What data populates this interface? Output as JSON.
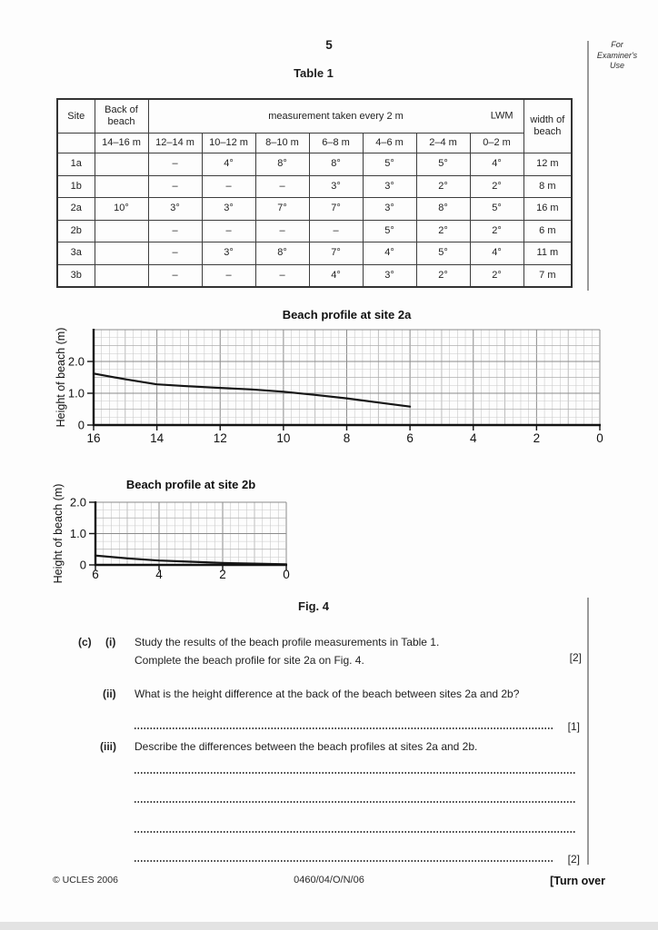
{
  "page": {
    "number": "5",
    "examiner_note": [
      "For",
      "Examiner's",
      "Use"
    ]
  },
  "table": {
    "title": "Table 1",
    "header": {
      "site": "Site",
      "back_of_beach": "Back of beach",
      "measurement": "measurement taken every 2 m",
      "lwm": "LWM",
      "width": "width of beach",
      "ranges": [
        "14–16 m",
        "12–14 m",
        "10–12 m",
        "8–10 m",
        "6–8 m",
        "4–6 m",
        "2–4 m",
        "0–2 m"
      ]
    },
    "rows": [
      {
        "site": "1a",
        "values": [
          "",
          "–",
          "4°",
          "8°",
          "8°",
          "5°",
          "5°",
          "4°"
        ],
        "width": "12 m"
      },
      {
        "site": "1b",
        "values": [
          "",
          "–",
          "–",
          "–",
          "3°",
          "3°",
          "2°",
          "2°"
        ],
        "width": "8 m"
      },
      {
        "site": "2a",
        "values": [
          "10°",
          "3°",
          "3°",
          "7°",
          "7°",
          "3°",
          "8°",
          "5°"
        ],
        "width": "16 m"
      },
      {
        "site": "2b",
        "values": [
          "",
          "–",
          "–",
          "–",
          "–",
          "5°",
          "2°",
          "2°"
        ],
        "width": "6 m"
      },
      {
        "site": "3a",
        "values": [
          "",
          "–",
          "3°",
          "8°",
          "7°",
          "4°",
          "5°",
          "4°"
        ],
        "width": "11 m"
      },
      {
        "site": "3b",
        "values": [
          "",
          "–",
          "–",
          "–",
          "4°",
          "3°",
          "2°",
          "2°"
        ],
        "width": "7 m"
      }
    ]
  },
  "chart_data": [
    {
      "type": "line",
      "title": "Beach profile at site 2a",
      "xlabel": "",
      "ylabel": "Height of beach (m)",
      "xlim": [
        16,
        0
      ],
      "ylim": [
        0,
        3.0
      ],
      "x_ticks": [
        16,
        14,
        12,
        10,
        8,
        6,
        4,
        2,
        0
      ],
      "y_ticks": [
        {
          "v": 0,
          "label": "0"
        },
        {
          "v": 1,
          "label": "1.0"
        },
        {
          "v": 2,
          "label": "2.0"
        }
      ],
      "grid": {
        "on": true,
        "minor_step": 0.25,
        "x_major": 2,
        "y_major": 1
      },
      "series": [
        {
          "name": "beach profile (drawn only from 16 m to 6 m, incomplete)",
          "points": [
            [
              16,
              1.62
            ],
            [
              15,
              1.44
            ],
            [
              14,
              1.28
            ],
            [
              13,
              1.22
            ],
            [
              12,
              1.17
            ],
            [
              11,
              1.12
            ],
            [
              10,
              1.05
            ],
            [
              9,
              0.95
            ],
            [
              8,
              0.84
            ],
            [
              7,
              0.71
            ],
            [
              6,
              0.58
            ]
          ]
        }
      ]
    },
    {
      "type": "line",
      "title": "Beach profile at site 2b",
      "xlabel": "",
      "ylabel": "Height of beach (m)",
      "xlim": [
        6,
        0
      ],
      "ylim": [
        0,
        2.0
      ],
      "x_ticks": [
        6,
        4,
        2,
        0
      ],
      "y_ticks": [
        {
          "v": 0,
          "label": "0"
        },
        {
          "v": 1,
          "label": "1.0"
        },
        {
          "v": 2,
          "label": "2.0"
        }
      ],
      "grid": {
        "on": true,
        "minor_step": 0.25,
        "x_major": 2,
        "y_major": 1
      },
      "series": [
        {
          "name": "beach profile (complete, 6 m to 0 m)",
          "points": [
            [
              6,
              0.3
            ],
            [
              5,
              0.21
            ],
            [
              4,
              0.14
            ],
            [
              3,
              0.1
            ],
            [
              2,
              0.06
            ],
            [
              1,
              0.04
            ],
            [
              0,
              0.02
            ]
          ]
        }
      ]
    }
  ],
  "fig_caption": "Fig. 4",
  "questions": {
    "part": "(c)",
    "i": {
      "label": "(i)",
      "line1": "Study the results of the beach profile measurements in Table 1.",
      "line2": "Complete the beach profile for site 2a on Fig. 4.",
      "marks": "[2]"
    },
    "ii": {
      "label": "(ii)",
      "text": "What is the height difference at the back of the beach between sites 2a and 2b?",
      "marks": "[1]"
    },
    "iii": {
      "label": "(iii)",
      "text": "Describe the differences between the beach profiles at sites 2a and 2b.",
      "marks": "[2]"
    }
  },
  "footer": {
    "copyright": "© UCLES 2006",
    "paper_code": "0460/04/O/N/06",
    "turn_over": "[Turn over"
  }
}
